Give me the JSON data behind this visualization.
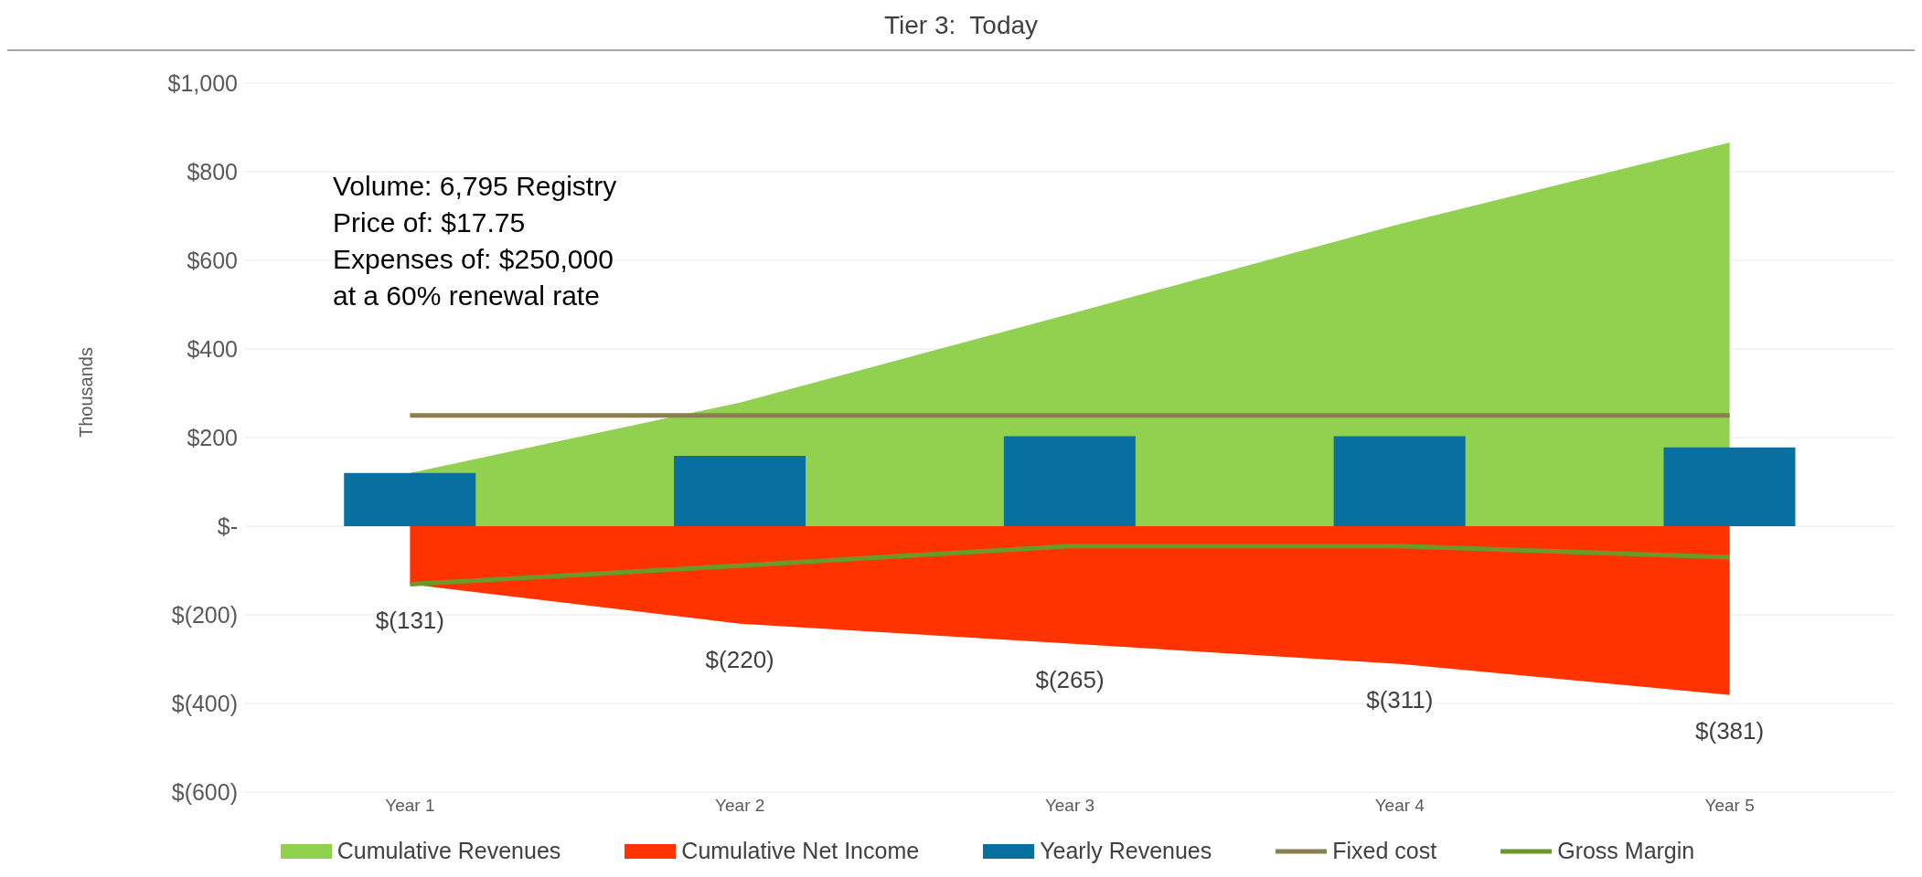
{
  "chart_data": {
    "type": "area",
    "title": "Tier 3:  Today",
    "ylabel": "Thousands",
    "categories": [
      "Year 1",
      "Year 2",
      "Year 3",
      "Year 4",
      "Year 5"
    ],
    "series": [
      {
        "name": "Cumulative Revenues",
        "color": "#92d050",
        "values": [
          120,
          279,
          479,
          682,
          866
        ]
      },
      {
        "name": "Cumulative Net Income",
        "color": "#ff3300",
        "values": [
          -131,
          -220,
          -265,
          -311,
          -381
        ],
        "value_labels": [
          "$(131)",
          "$(220)",
          "$(265)",
          "$(311)",
          "$(381)"
        ]
      },
      {
        "name": "Yearly Revenues",
        "type": "bar",
        "color": "#0870a0",
        "values": [
          120,
          159,
          203,
          203,
          178
        ]
      },
      {
        "name": "Fixed cost",
        "type": "line",
        "color": "#8c7f4f",
        "values": [
          250,
          250,
          250,
          250,
          250
        ]
      },
      {
        "name": "Gross Margin",
        "type": "line",
        "color": "#6a9a2a",
        "values": [
          -131,
          -89,
          -45,
          -45,
          -70
        ]
      }
    ],
    "ylim": [
      -600,
      1000
    ],
    "yticks": [
      {
        "value": -600,
        "label": "$(600)"
      },
      {
        "value": -400,
        "label": "$(400)"
      },
      {
        "value": -200,
        "label": "$(200)"
      },
      {
        "value": 0,
        "label": "$-"
      },
      {
        "value": 200,
        "label": "$200"
      },
      {
        "value": 400,
        "label": "$400"
      },
      {
        "value": 600,
        "label": "$600"
      },
      {
        "value": 800,
        "label": "$800"
      },
      {
        "value": 1000,
        "label": "$1,000"
      }
    ],
    "grid": "y",
    "legend": "bottom",
    "annotations": [
      "Volume: 6,795 Registry",
      "Price of: $17.75",
      "Expenses of: $250,000",
      "at a 60% renewal rate"
    ]
  }
}
